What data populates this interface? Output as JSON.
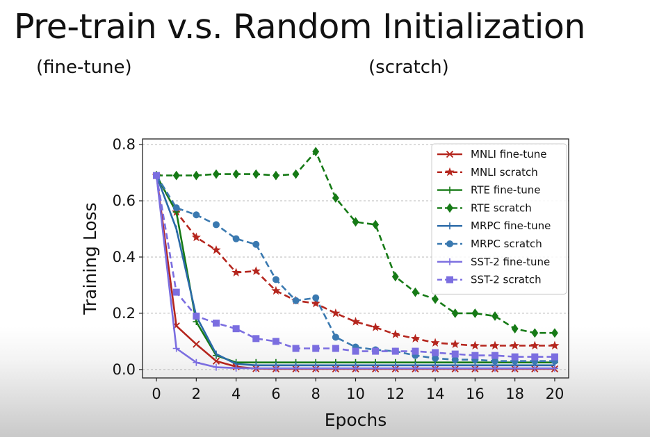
{
  "slide": {
    "title": "Pre-train v.s. Random Initialization",
    "subtitle_left": "(fine-tune)",
    "subtitle_right": "(scratch)"
  },
  "chart_data": {
    "type": "line",
    "xlabel": "Epochs",
    "ylabel": "Training Loss",
    "xlim": [
      -0.7,
      20.7
    ],
    "ylim": [
      -0.03,
      0.82
    ],
    "xticks": [
      0,
      2,
      4,
      6,
      8,
      10,
      12,
      14,
      16,
      18,
      20
    ],
    "yticks": [
      0.0,
      0.2,
      0.4,
      0.6,
      0.8
    ],
    "ytick_labels": [
      "0.0",
      "0.2",
      "0.4",
      "0.6",
      "0.8"
    ],
    "grid": "horizontal dashed",
    "legend_position": "upper-right",
    "x": [
      0,
      1,
      2,
      3,
      4,
      5,
      6,
      7,
      8,
      9,
      10,
      11,
      12,
      13,
      14,
      15,
      16,
      17,
      18,
      19,
      20
    ],
    "series": [
      {
        "name": "MNLI fine-tune",
        "color": "#b5261e",
        "dash": "solid",
        "marker": "x",
        "values": [
          0.69,
          0.155,
          0.09,
          0.03,
          0.01,
          0.003,
          0.002,
          0.002,
          0.002,
          0.002,
          0.002,
          0.002,
          0.002,
          0.002,
          0.002,
          0.002,
          0.002,
          0.002,
          0.002,
          0.002,
          0.002
        ]
      },
      {
        "name": "MNLI scratch",
        "color": "#b5261e",
        "dash": "dashed",
        "marker": "star",
        "values": [
          0.69,
          0.56,
          0.47,
          0.425,
          0.345,
          0.35,
          0.28,
          0.245,
          0.235,
          0.2,
          0.17,
          0.15,
          0.125,
          0.11,
          0.095,
          0.09,
          0.085,
          0.085,
          0.085,
          0.085,
          0.085
        ]
      },
      {
        "name": "RTE fine-tune",
        "color": "#167a16",
        "dash": "solid",
        "marker": "plus",
        "values": [
          0.69,
          0.56,
          0.17,
          0.05,
          0.025,
          0.025,
          0.025,
          0.025,
          0.025,
          0.025,
          0.025,
          0.025,
          0.025,
          0.025,
          0.025,
          0.025,
          0.025,
          0.025,
          0.025,
          0.025,
          0.025
        ]
      },
      {
        "name": "RTE scratch",
        "color": "#167a16",
        "dash": "dashed",
        "marker": "diamond",
        "values": [
          0.69,
          0.69,
          0.69,
          0.695,
          0.695,
          0.695,
          0.69,
          0.695,
          0.775,
          0.61,
          0.525,
          0.515,
          0.33,
          0.275,
          0.25,
          0.2,
          0.2,
          0.19,
          0.145,
          0.13,
          0.13
        ]
      },
      {
        "name": "MRPC fine-tune",
        "color": "#2b6aa8",
        "dash": "solid",
        "marker": "vline",
        "values": [
          0.69,
          0.5,
          0.19,
          0.055,
          0.02,
          0.015,
          0.015,
          0.015,
          0.015,
          0.015,
          0.015,
          0.015,
          0.015,
          0.015,
          0.015,
          0.015,
          0.015,
          0.015,
          0.015,
          0.015,
          0.015
        ]
      },
      {
        "name": "MRPC scratch",
        "color": "#3a79b0",
        "dash": "dashed",
        "marker": "circle",
        "values": [
          0.69,
          0.575,
          0.55,
          0.515,
          0.465,
          0.445,
          0.32,
          0.245,
          0.255,
          0.115,
          0.08,
          0.07,
          0.065,
          0.05,
          0.04,
          0.035,
          0.035,
          0.03,
          0.03,
          0.03,
          0.03
        ]
      },
      {
        "name": "SST-2 fine-tune",
        "color": "#7b6ee0",
        "dash": "solid",
        "marker": "plus",
        "values": [
          0.69,
          0.075,
          0.025,
          0.008,
          0.005,
          0.004,
          0.004,
          0.004,
          0.004,
          0.004,
          0.004,
          0.004,
          0.004,
          0.004,
          0.004,
          0.004,
          0.004,
          0.004,
          0.004,
          0.004,
          0.004
        ]
      },
      {
        "name": "SST-2 scratch",
        "color": "#7b6ee0",
        "dash": "dashed",
        "marker": "square",
        "values": [
          0.69,
          0.275,
          0.19,
          0.165,
          0.145,
          0.11,
          0.1,
          0.075,
          0.075,
          0.075,
          0.065,
          0.065,
          0.065,
          0.065,
          0.06,
          0.055,
          0.05,
          0.05,
          0.045,
          0.045,
          0.045
        ]
      }
    ]
  }
}
